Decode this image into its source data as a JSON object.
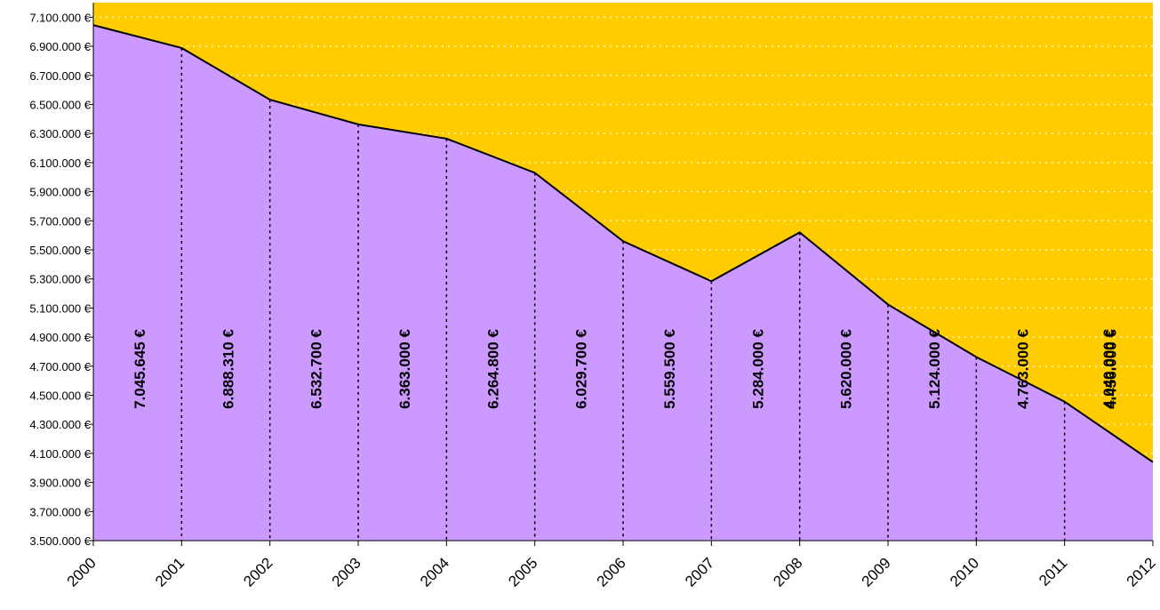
{
  "chart_data": {
    "type": "area",
    "categories": [
      "2000",
      "2001",
      "2002",
      "2003",
      "2004",
      "2005",
      "2006",
      "2007",
      "2008",
      "2009",
      "2010",
      "2011",
      "2012"
    ],
    "values": [
      7045645,
      6888310,
      6532700,
      6363000,
      6264800,
      6029700,
      5559500,
      5284000,
      5620000,
      5124000,
      4763000,
      4456000,
      4040000
    ],
    "value_labels": [
      "7.045.645 €",
      "6.888.310 €",
      "6.532.700 €",
      "6.363.000 €",
      "6.264.800 €",
      "6.029.700 €",
      "5.559.500 €",
      "5.284.000 €",
      "5.620.000 €",
      "5.124.000 €",
      "4.763.000 €",
      "4.456.000 €",
      "4.040.000 €"
    ],
    "color": "#cc99ff",
    "background": "#ffcc00",
    "grid": true,
    "ylim": [
      3500000,
      7200000
    ],
    "yticks": [
      {
        "value": 3500000,
        "label": "3.500.000 €"
      },
      {
        "value": 3700000,
        "label": "3.700.000 €"
      },
      {
        "value": 3900000,
        "label": "3.900.000 €"
      },
      {
        "value": 4100000,
        "label": "4.100.000 €"
      },
      {
        "value": 4300000,
        "label": "4.300.000 €"
      },
      {
        "value": 4500000,
        "label": "4.500.000 €"
      },
      {
        "value": 4700000,
        "label": "4.700.000 €"
      },
      {
        "value": 4900000,
        "label": "4.900.000 €"
      },
      {
        "value": 5100000,
        "label": "5.100.000 €"
      },
      {
        "value": 5300000,
        "label": "5.300.000 €"
      },
      {
        "value": 5500000,
        "label": "5.500.000 €"
      },
      {
        "value": 5700000,
        "label": "5.700.000 €"
      },
      {
        "value": 5900000,
        "label": "5.900.000 €"
      },
      {
        "value": 6100000,
        "label": "6.100.000 €"
      },
      {
        "value": 6300000,
        "label": "6.300.000 €"
      },
      {
        "value": 6500000,
        "label": "6.500.000 €"
      },
      {
        "value": 6700000,
        "label": "6.700.000 €"
      },
      {
        "value": 6900000,
        "label": "6.900.000 €"
      },
      {
        "value": 7100000,
        "label": "7.100.000 €"
      }
    ]
  }
}
